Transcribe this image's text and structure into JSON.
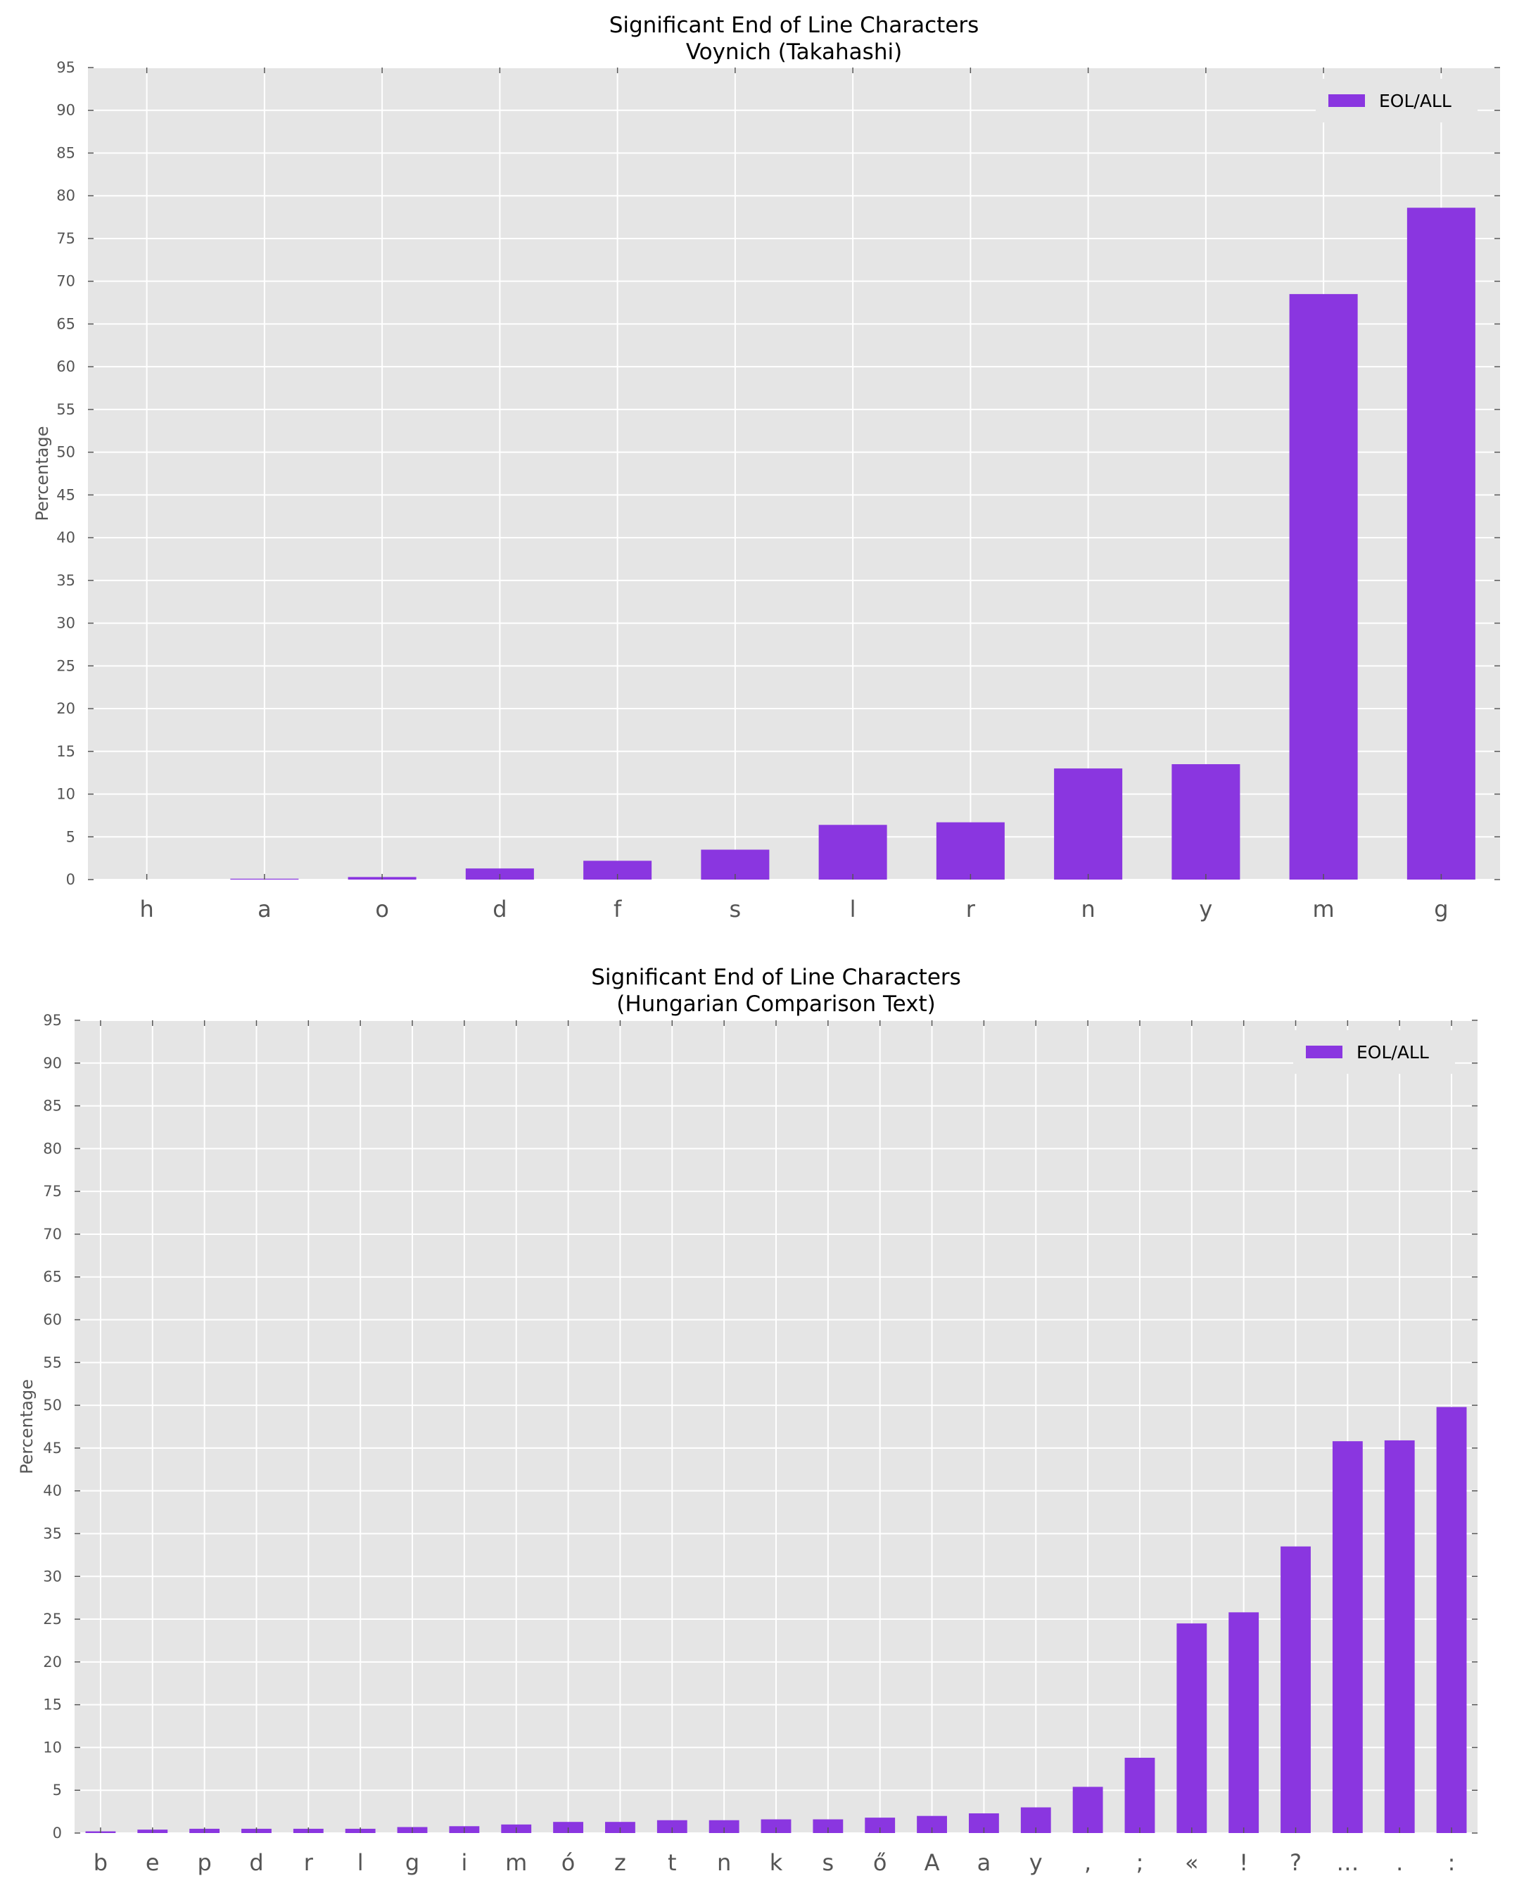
{
  "colors": {
    "bar": "#8a36e0",
    "plot_bg": "#e5e5e5",
    "grid": "#ffffff",
    "tick_text": "#555555",
    "title": "#000000"
  },
  "chart_data": [
    {
      "type": "bar",
      "title": "Significant End of Line Characters",
      "subtitle": "Voynich (Takahashi)",
      "xlabel": "",
      "ylabel": "Percentage",
      "ylim": [
        0,
        95
      ],
      "yticks": [
        0,
        5,
        10,
        15,
        20,
        25,
        30,
        35,
        40,
        45,
        50,
        55,
        60,
        65,
        70,
        75,
        80,
        85,
        90,
        95
      ],
      "grid": true,
      "legend_position": "top-right",
      "categories": [
        "h",
        "a",
        "o",
        "d",
        "f",
        "s",
        "l",
        "r",
        "n",
        "y",
        "m",
        "g"
      ],
      "series": [
        {
          "name": "EOL/ALL",
          "values": [
            0.0,
            0.1,
            0.3,
            1.3,
            2.2,
            3.5,
            6.4,
            6.7,
            13.0,
            13.5,
            68.5,
            78.6
          ]
        }
      ]
    },
    {
      "type": "bar",
      "title": "Significant End of Line Characters",
      "subtitle": "(Hungarian Comparison Text)",
      "xlabel": "",
      "ylabel": "Percentage",
      "ylim": [
        0,
        95
      ],
      "yticks": [
        0,
        5,
        10,
        15,
        20,
        25,
        30,
        35,
        40,
        45,
        50,
        55,
        60,
        65,
        70,
        75,
        80,
        85,
        90,
        95
      ],
      "grid": true,
      "legend_position": "top-right",
      "categories": [
        "b",
        "e",
        "p",
        "d",
        "r",
        "l",
        "g",
        "i",
        "m",
        "ó",
        "z",
        "t",
        "n",
        "k",
        "s",
        "ő",
        "A",
        "a",
        "y",
        ",",
        ";",
        "«",
        "!",
        "?",
        "…",
        ".",
        ":"
      ],
      "series": [
        {
          "name": "EOL/ALL",
          "values": [
            0.2,
            0.4,
            0.5,
            0.5,
            0.5,
            0.5,
            0.7,
            0.8,
            1.0,
            1.3,
            1.3,
            1.5,
            1.5,
            1.6,
            1.6,
            1.8,
            2.0,
            2.3,
            3.0,
            5.4,
            8.8,
            24.5,
            25.8,
            33.5,
            45.8,
            45.9,
            49.8
          ]
        }
      ]
    }
  ]
}
